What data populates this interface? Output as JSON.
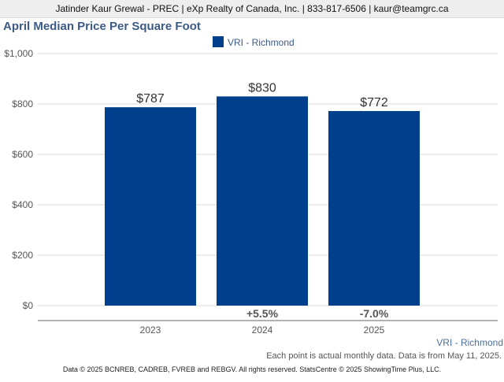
{
  "header": {
    "text": "Jatinder Kaur Grewal - PREC | eXp Realty of Canada, Inc. | 833-817-6506 | kaur@teamgrc.ca"
  },
  "chart_data": {
    "type": "bar",
    "title": "April Median Price Per Square Foot",
    "categories": [
      "2023",
      "2024",
      "2025"
    ],
    "series": [
      {
        "name": "VRI - Richmond",
        "values": [
          787,
          830,
          772
        ],
        "color": "#003f8c"
      }
    ],
    "data_labels": [
      "$787",
      "$830",
      "$772"
    ],
    "change_labels": [
      "",
      "+5.5%",
      "-7.0%"
    ],
    "y_ticks": [
      "$0",
      "$200",
      "$400",
      "$600",
      "$800",
      "$1,000"
    ],
    "ylim": [
      0,
      1000
    ],
    "grid": true,
    "legend_position": "top-center"
  },
  "source_label": "VRI - Richmond",
  "note": "Each point is actual monthly data. Data is from May 11, 2025.",
  "footer": "Data © 2025 BCNREB, CADREB, FVREB and REBGV. All rights reserved. StatsCentre © 2025 ShowingTime Plus, LLC."
}
